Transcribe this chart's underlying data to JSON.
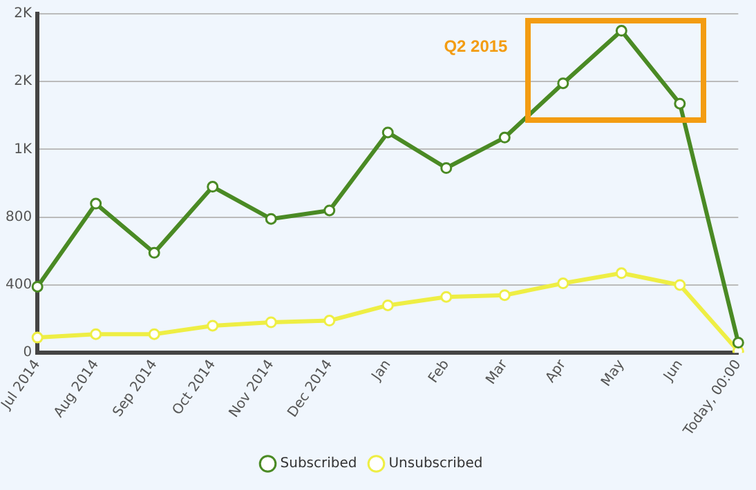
{
  "chart_data": {
    "type": "line",
    "categories": [
      "Jul 2014",
      "Aug 2014",
      "Sep 2014",
      "Oct 2014",
      "Nov 2014",
      "Dec 2014",
      "Jan",
      "Feb",
      "Mar",
      "Apr",
      "May",
      "Jun",
      "Today, 00:00"
    ],
    "series": [
      {
        "name": "Subscribed",
        "color": "#4a8a24",
        "values": [
          390,
          880,
          590,
          980,
          790,
          840,
          1300,
          1090,
          1270,
          1590,
          1900,
          1470,
          60
        ]
      },
      {
        "name": "Unsubscribed",
        "color": "#eeee44",
        "values": [
          90,
          110,
          110,
          160,
          180,
          190,
          280,
          330,
          340,
          410,
          470,
          400,
          10
        ]
      }
    ],
    "ylim": [
      0,
      2000
    ],
    "yticks": [
      0,
      400,
      800,
      {
        "value": 1200,
        "label": "1K"
      },
      {
        "value": 1600,
        "label": "2K"
      },
      {
        "value": 2000,
        "label": "2K"
      }
    ],
    "grid": "y",
    "legend": "bottom",
    "marker": "circle",
    "line_style": "solid",
    "annotations": [
      "Q2 2015"
    ]
  }
}
